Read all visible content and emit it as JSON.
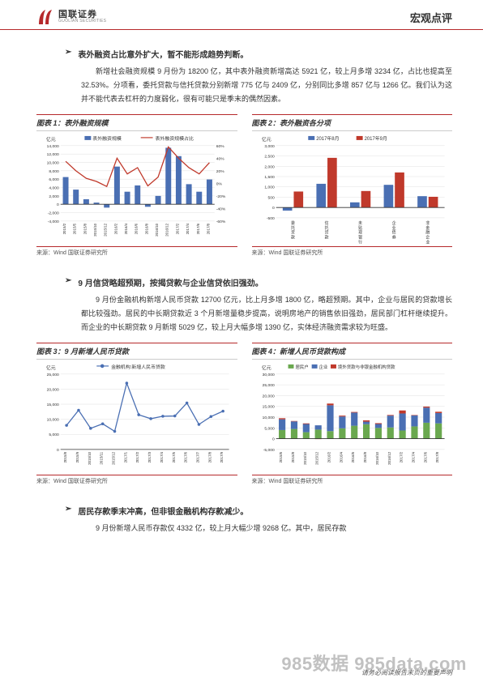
{
  "header": {
    "logo_cn": "国联证券",
    "logo_en": "GUOLIAN SECURITIES",
    "doc_type": "宏观点评"
  },
  "section1": {
    "heading": "表外融资占比意外扩大，暂不能形成趋势判断。",
    "para": "新增社会融资规模 9 月份为 18200 亿，其中表外融资新增高达 5921 亿，较上月多增 3234 亿，占比也提高至 32.53%。分项看，委托贷款与信托贷款分别新增 775 亿与 2409 亿，分别同比多增 857 亿与 1266 亿。我们认为这并不能代表去杠杆的力度弱化，很有可能只是季末的偶然因素。"
  },
  "chart1": {
    "title": "图表 1：表外融资规模",
    "y_label": "亿元",
    "legend": [
      "表外融资规模",
      "表外融资规模占比"
    ],
    "categories": [
      "2015/2",
      "2015/5",
      "2015/8",
      "2015/10",
      "2015/12",
      "2016/2",
      "2016/4",
      "2016/6",
      "2016/8",
      "2016/10",
      "2016/12",
      "2017/2",
      "2017/4",
      "2017/6",
      "2017/8"
    ],
    "bar_values": [
      6500,
      3500,
      1200,
      400,
      -800,
      9000,
      3000,
      4500,
      -600,
      2000,
      13500,
      11500,
      4800,
      3000,
      5921
    ],
    "line_values": [
      35,
      20,
      8,
      3,
      -5,
      40,
      15,
      25,
      -4,
      10,
      58,
      40,
      25,
      15,
      33
    ],
    "y_left": {
      "min": -4000,
      "max": 14000,
      "step": 2000
    },
    "y_right": {
      "min": -60,
      "max": 60,
      "step": 20,
      "suffix": "%"
    },
    "bar_color": "#4a6fb3",
    "line_color": "#c0392b",
    "bg": "#ffffff",
    "grid_color": "#e0e0e0",
    "source": "来源：Wind  国联证券研究所"
  },
  "chart2": {
    "title": "图表 2：表外融资各分项",
    "y_label": "亿元",
    "legend": [
      "2017年8月",
      "2017年9月"
    ],
    "categories": [
      "委托贷款",
      "信托贷款",
      "未贴现银行承兑汇票",
      "企业债券",
      "非金融企业境内股票融资"
    ],
    "series1": [
      -150,
      1150,
      250,
      1100,
      550
    ],
    "series2": [
      775,
      2409,
      800,
      1700,
      520
    ],
    "y": {
      "min": -500,
      "max": 3000,
      "step": 500
    },
    "color1": "#4a6fb3",
    "color2": "#c0392b",
    "bg": "#ffffff",
    "grid_color": "#e0e0e0",
    "source": "来源：Wind  国联证券研究所"
  },
  "section2": {
    "heading": "9 月信贷略超预期，按揭贷款与企业信贷依旧强劲。",
    "para": "9 月份金融机构新增人民币贷款 12700 亿元，比上月多增 1800 亿，略超预期。其中，企业与居民的贷款增长都比较强劲。居民的中长期贷款近 3 个月新增量稳步提高，说明房地产的销售依旧强劲，居民部门杠杆继续提升。而企业的中长期贷款 9 月新增 5029 亿，较上月大幅多增 1390 亿，实体经济融资需求较为旺盛。"
  },
  "chart3": {
    "title": "图表 3：9 月新增人民币贷款",
    "y_label": "亿元",
    "legend": [
      "金融机构:新增人民币贷款"
    ],
    "categories": [
      "2015/8",
      "2015/9",
      "2015/10",
      "2015/11",
      "2015/12",
      "2017/1",
      "2017/2",
      "2017/3",
      "2017/4",
      "2017/5",
      "2017/6",
      "2017/7",
      "2017/8",
      "2017/9"
    ],
    "values": [
      8000,
      13000,
      7000,
      8500,
      6000,
      22000,
      11500,
      10200,
      11000,
      11100,
      15400,
      8300,
      10900,
      12700
    ],
    "y": {
      "min": 0,
      "max": 25000,
      "step": 5000
    },
    "line_color": "#4a6fb3",
    "marker_color": "#4a6fb3",
    "bg": "#ffffff",
    "grid_color": "#e0e0e0",
    "source": "来源：Wind  国联证券研究所"
  },
  "chart4": {
    "title": "图表 4：新增人民币贷款构成",
    "y_label": "亿元",
    "legend": [
      "居民户",
      "企业",
      "境外贷款与非银金融机构贷款"
    ],
    "categories": [
      "2015/6",
      "2015/8",
      "2015/10",
      "2015/12",
      "2016/2",
      "2016/4",
      "2016/6",
      "2016/8",
      "2016/10",
      "2016/12",
      "2017/2",
      "2017/4",
      "2017/6",
      "2017/8"
    ],
    "s1": [
      4000,
      4500,
      3000,
      4200,
      3500,
      4800,
      6000,
      6700,
      5000,
      5200,
      3800,
      5700,
      7400,
      7100
    ],
    "s2": [
      5000,
      3500,
      3800,
      2000,
      12000,
      5500,
      6100,
      1200,
      1800,
      5500,
      7900,
      5100,
      7000,
      4800
    ],
    "s3": [
      500,
      200,
      300,
      -200,
      800,
      400,
      300,
      600,
      400,
      300,
      1400,
      200,
      500,
      600
    ],
    "y": {
      "min": -5000,
      "max": 30000,
      "step": 5000
    },
    "c1": "#6aa84f",
    "c2": "#4a6fb3",
    "c3": "#c0392b",
    "bg": "#ffffff",
    "grid_color": "#e0e0e0",
    "source": "来源：Wind  国联证券研究所"
  },
  "section3": {
    "heading": "居民存款季末冲高，但非银金融机构存款减少。",
    "para": "9 月份新增人民币存款仅 4332 亿，较上月大幅少增 9268 亿。其中，居民存款"
  },
  "footer": {
    "watermark": "985数据 985data.com",
    "note": "请务必阅读报告末页的重要声明"
  }
}
